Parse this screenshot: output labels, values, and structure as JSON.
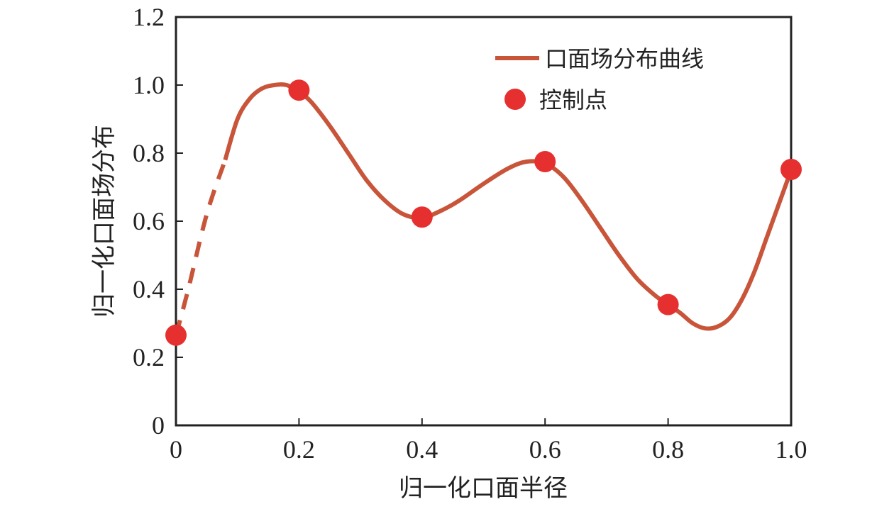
{
  "chart_data": {
    "type": "line",
    "xlabel": "归一化口面半径",
    "ylabel": "归一化口面场分布",
    "xlim": [
      0,
      1.0
    ],
    "ylim": [
      0,
      1.2
    ],
    "xticks": [
      0,
      0.2,
      0.4,
      0.6,
      0.8,
      1.0
    ],
    "xtick_labels": [
      "0",
      "0.2",
      "0.4",
      "0.6",
      "0.8",
      "1.0"
    ],
    "yticks": [
      0,
      0.2,
      0.4,
      0.6,
      0.8,
      1.0,
      1.2
    ],
    "ytick_labels": [
      "0",
      "0.2",
      "0.4",
      "0.6",
      "0.8",
      "1.0",
      "1.2"
    ],
    "grid": false,
    "legend_position": "top-right",
    "colors": {
      "curve": "#c8553a",
      "control": "#e63030",
      "axis": "#222222"
    },
    "series": [
      {
        "name": "口面场分布曲线",
        "style": "line",
        "dashed_x_range": [
          0,
          0.09
        ],
        "x": [
          0,
          0.02,
          0.05,
          0.08,
          0.1,
          0.12,
          0.14,
          0.16,
          0.18,
          0.2,
          0.22,
          0.25,
          0.28,
          0.31,
          0.34,
          0.37,
          0.4,
          0.43,
          0.46,
          0.5,
          0.54,
          0.57,
          0.6,
          0.63,
          0.66,
          0.69,
          0.72,
          0.75,
          0.78,
          0.8,
          0.82,
          0.84,
          0.86,
          0.88,
          0.9,
          0.92,
          0.94,
          0.96,
          0.98,
          1.0
        ],
        "y": [
          0.265,
          0.4,
          0.62,
          0.78,
          0.9,
          0.96,
          0.99,
          1.0,
          1.0,
          0.98,
          0.95,
          0.88,
          0.8,
          0.72,
          0.66,
          0.62,
          0.61,
          0.63,
          0.66,
          0.71,
          0.755,
          0.775,
          0.77,
          0.73,
          0.66,
          0.58,
          0.5,
          0.43,
          0.38,
          0.355,
          0.33,
          0.3,
          0.285,
          0.29,
          0.315,
          0.37,
          0.45,
          0.55,
          0.65,
          0.75
        ]
      },
      {
        "name": "控制点",
        "style": "scatter",
        "x": [
          0,
          0.2,
          0.4,
          0.6,
          0.8,
          1.0
        ],
        "y": [
          0.265,
          0.985,
          0.612,
          0.775,
          0.355,
          0.752
        ]
      }
    ]
  }
}
